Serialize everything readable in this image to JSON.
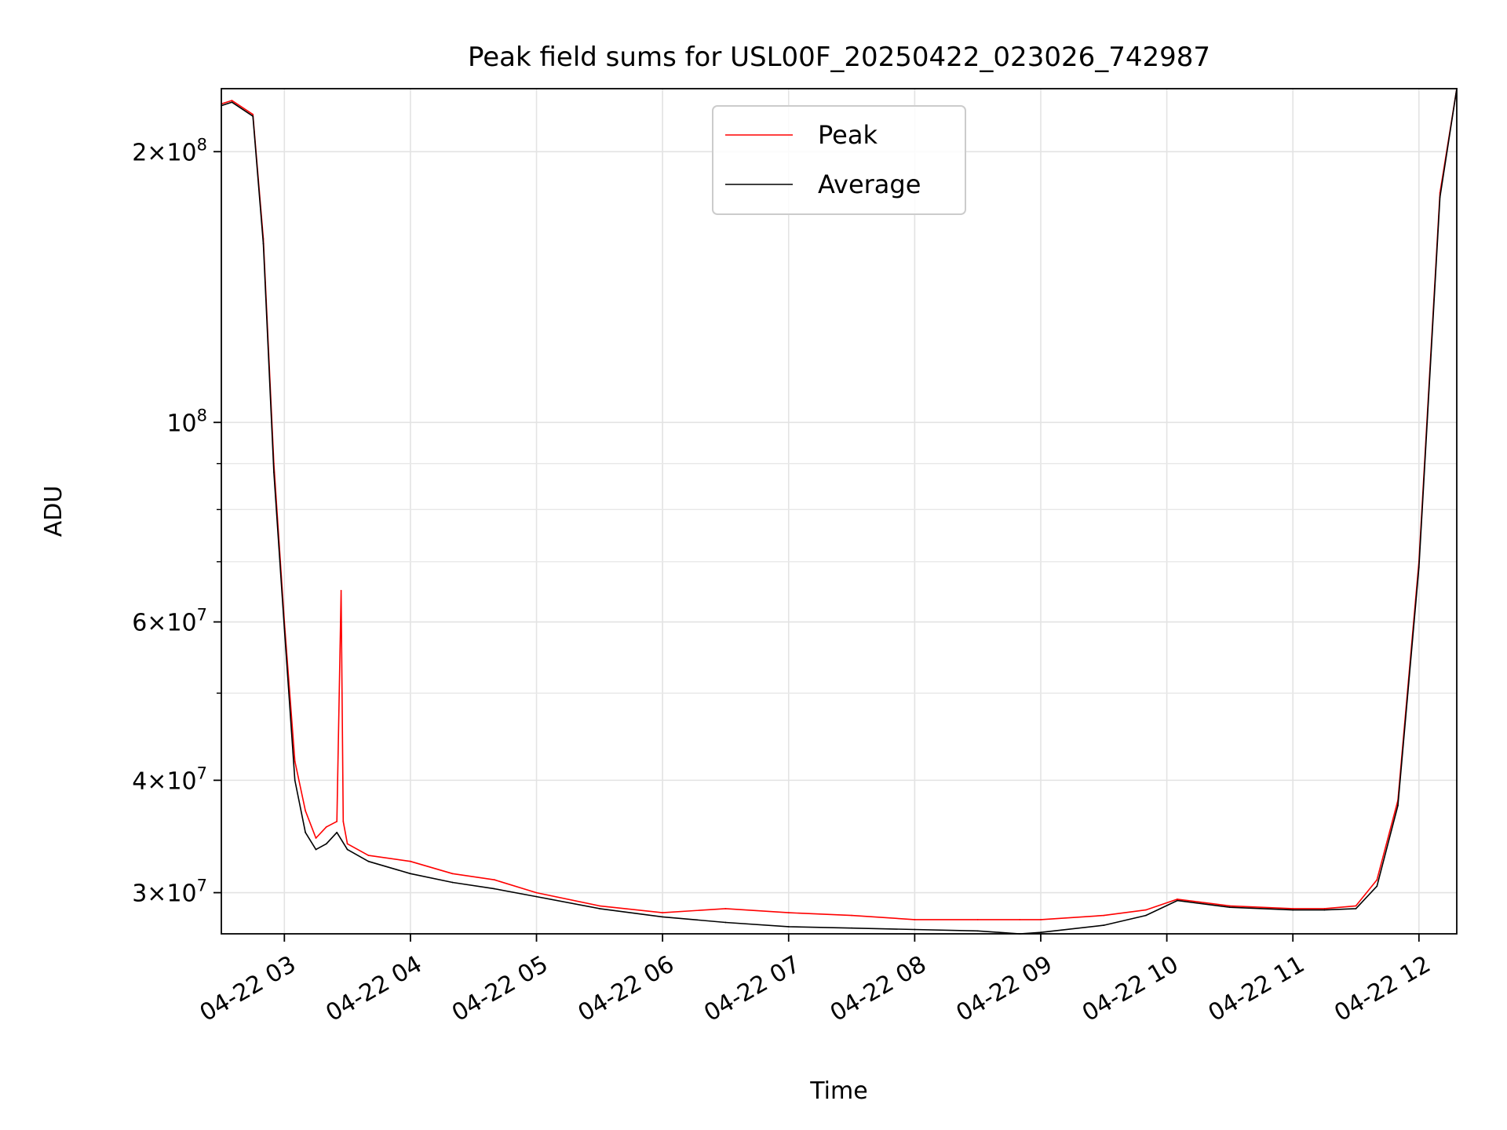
{
  "chart_data": {
    "type": "line",
    "title": "Peak field sums for USL00F_20250422_023026_742987",
    "xlabel": "Time",
    "ylabel": "ADU",
    "y_scale": "log",
    "grid": true,
    "legend_position": "top-center",
    "x_range": [
      "04-22 02:30",
      "04-22 12:18"
    ],
    "ylim": [
      27000000,
      235000000
    ],
    "x_tick_labels": [
      "04-22 03",
      "04-22 04",
      "04-22 05",
      "04-22 06",
      "04-22 07",
      "04-22 08",
      "04-22 09",
      "04-22 10",
      "04-22 11",
      "04-22 12"
    ],
    "y_tick_labels": [
      {
        "value": 30000000,
        "mantissa": "3",
        "exponent": "7"
      },
      {
        "value": 40000000,
        "mantissa": "4",
        "exponent": "7"
      },
      {
        "value": 60000000,
        "mantissa": "6",
        "exponent": "7"
      },
      {
        "value": 100000000,
        "mantissa": "",
        "exponent": "8"
      },
      {
        "value": 200000000,
        "mantissa": "2",
        "exponent": "8"
      }
    ],
    "series": [
      {
        "name": "Peak",
        "color": "#ff0000",
        "x": [
          "04-22 02:30",
          "04-22 02:35",
          "04-22 02:45",
          "04-22 02:50",
          "04-22 02:55",
          "04-22 03:00",
          "04-22 03:05",
          "04-22 03:10",
          "04-22 03:15",
          "04-22 03:20",
          "04-22 03:25",
          "04-22 03:27",
          "04-22 03:28",
          "04-22 03:30",
          "04-22 03:40",
          "04-22 04:00",
          "04-22 04:20",
          "04-22 04:40",
          "04-22 05:00",
          "04-22 05:30",
          "04-22 06:00",
          "04-22 06:30",
          "04-22 07:00",
          "04-22 07:30",
          "04-22 08:00",
          "04-22 08:30",
          "04-22 08:50",
          "04-22 09:00",
          "04-22 09:30",
          "04-22 09:50",
          "04-22 10:05",
          "04-22 10:30",
          "04-22 11:00",
          "04-22 11:15",
          "04-22 11:30",
          "04-22 11:40",
          "04-22 11:50",
          "04-22 12:00",
          "04-22 12:10",
          "04-22 12:18"
        ],
        "y": [
          226000000,
          228000000,
          220000000,
          160000000,
          90000000,
          60000000,
          42000000,
          37000000,
          34500000,
          35500000,
          36000000,
          65000000,
          36000000,
          34000000,
          33000000,
          32500000,
          31500000,
          31000000,
          30000000,
          29000000,
          28500000,
          28800000,
          28500000,
          28300000,
          28000000,
          28000000,
          28000000,
          28000000,
          28300000,
          28700000,
          29500000,
          29000000,
          28800000,
          28800000,
          29000000,
          31000000,
          38000000,
          70000000,
          180000000,
          235000000
        ]
      },
      {
        "name": "Average",
        "color": "#000000",
        "x": [
          "04-22 02:30",
          "04-22 02:35",
          "04-22 02:45",
          "04-22 02:50",
          "04-22 02:55",
          "04-22 03:00",
          "04-22 03:05",
          "04-22 03:10",
          "04-22 03:15",
          "04-22 03:20",
          "04-22 03:25",
          "04-22 03:30",
          "04-22 03:40",
          "04-22 04:00",
          "04-22 04:20",
          "04-22 04:40",
          "04-22 05:00",
          "04-22 05:30",
          "04-22 06:00",
          "04-22 06:30",
          "04-22 07:00",
          "04-22 07:30",
          "04-22 08:00",
          "04-22 08:30",
          "04-22 08:50",
          "04-22 09:00",
          "04-22 09:30",
          "04-22 09:50",
          "04-22 10:05",
          "04-22 10:30",
          "04-22 11:00",
          "04-22 11:15",
          "04-22 11:30",
          "04-22 11:40",
          "04-22 11:50",
          "04-22 12:00",
          "04-22 12:10",
          "04-22 12:18"
        ],
        "y": [
          225000000,
          227000000,
          219000000,
          158000000,
          88000000,
          59000000,
          40000000,
          35000000,
          33500000,
          34000000,
          35000000,
          33500000,
          32500000,
          31500000,
          30800000,
          30300000,
          29700000,
          28800000,
          28200000,
          27800000,
          27500000,
          27400000,
          27300000,
          27200000,
          27000000,
          27100000,
          27600000,
          28300000,
          29400000,
          28900000,
          28700000,
          28700000,
          28800000,
          30500000,
          37500000,
          69000000,
          178000000,
          235000000
        ]
      }
    ]
  }
}
